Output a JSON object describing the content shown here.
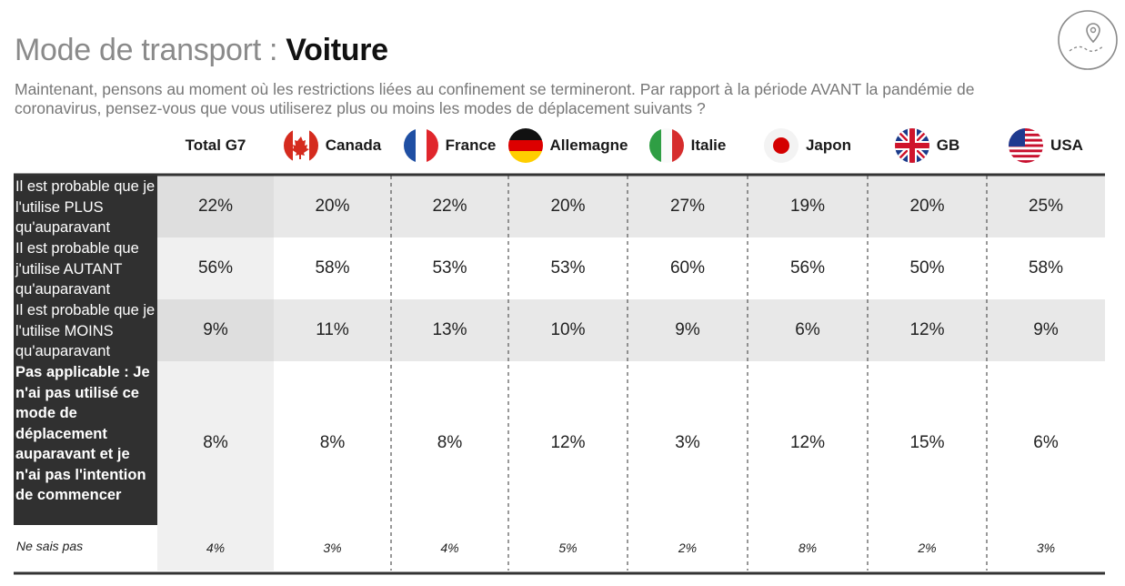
{
  "header": {
    "title_prefix": "Mode de transport : ",
    "title_strong": "Voiture",
    "subtitle": "Maintenant, pensons au moment où les restrictions liées au confinement se termineront. Par rapport à la période AVANT la pandémie de coronavirus, pensez-vous que vous utiliserez  plus ou moins les modes de déplacement suivants ?"
  },
  "logo": {
    "icon": "map-pin-route-icon"
  },
  "colors": {
    "label_bg": "#303030",
    "band_grey": "#e8e8e8",
    "total_col": "#f0f0f0",
    "rule": "#333333"
  },
  "chart_data": {
    "type": "table",
    "columns": [
      {
        "label": "Total G7",
        "flag": ""
      },
      {
        "label": "Canada",
        "flag": "canada-flag-icon"
      },
      {
        "label": "France",
        "flag": "france-flag-icon"
      },
      {
        "label": "Allemagne",
        "flag": "germany-flag-icon"
      },
      {
        "label": "Italie",
        "flag": "italy-flag-icon"
      },
      {
        "label": "Japon",
        "flag": "japan-flag-icon"
      },
      {
        "label": "GB",
        "flag": "uk-flag-icon"
      },
      {
        "label": "USA",
        "flag": "usa-flag-icon"
      }
    ],
    "rows": [
      {
        "label": "Il est probable que je l'utilise PLUS qu'auparavant",
        "values": [
          "22%",
          "20%",
          "22%",
          "20%",
          "27%",
          "19%",
          "20%",
          "25%"
        ]
      },
      {
        "label": "Il est probable que j'utilise AUTANT qu'auparavant",
        "values": [
          "56%",
          "58%",
          "53%",
          "53%",
          "60%",
          "56%",
          "50%",
          "58%"
        ]
      },
      {
        "label": "Il est probable que je l'utilise MOINS qu'auparavant",
        "values": [
          "9%",
          "11%",
          "13%",
          "10%",
          "9%",
          "6%",
          "12%",
          "9%"
        ]
      },
      {
        "label": "Pas applicable : Je n'ai pas utilisé ce mode de déplacement auparavant et je n'ai pas l'intention de commencer",
        "values": [
          "8%",
          "8%",
          "8%",
          "12%",
          "3%",
          "12%",
          "15%",
          "6%"
        ]
      }
    ],
    "footer_row": {
      "label": "Ne sais pas",
      "values": [
        "4%",
        "3%",
        "4%",
        "5%",
        "2%",
        "8%",
        "2%",
        "3%"
      ]
    }
  }
}
